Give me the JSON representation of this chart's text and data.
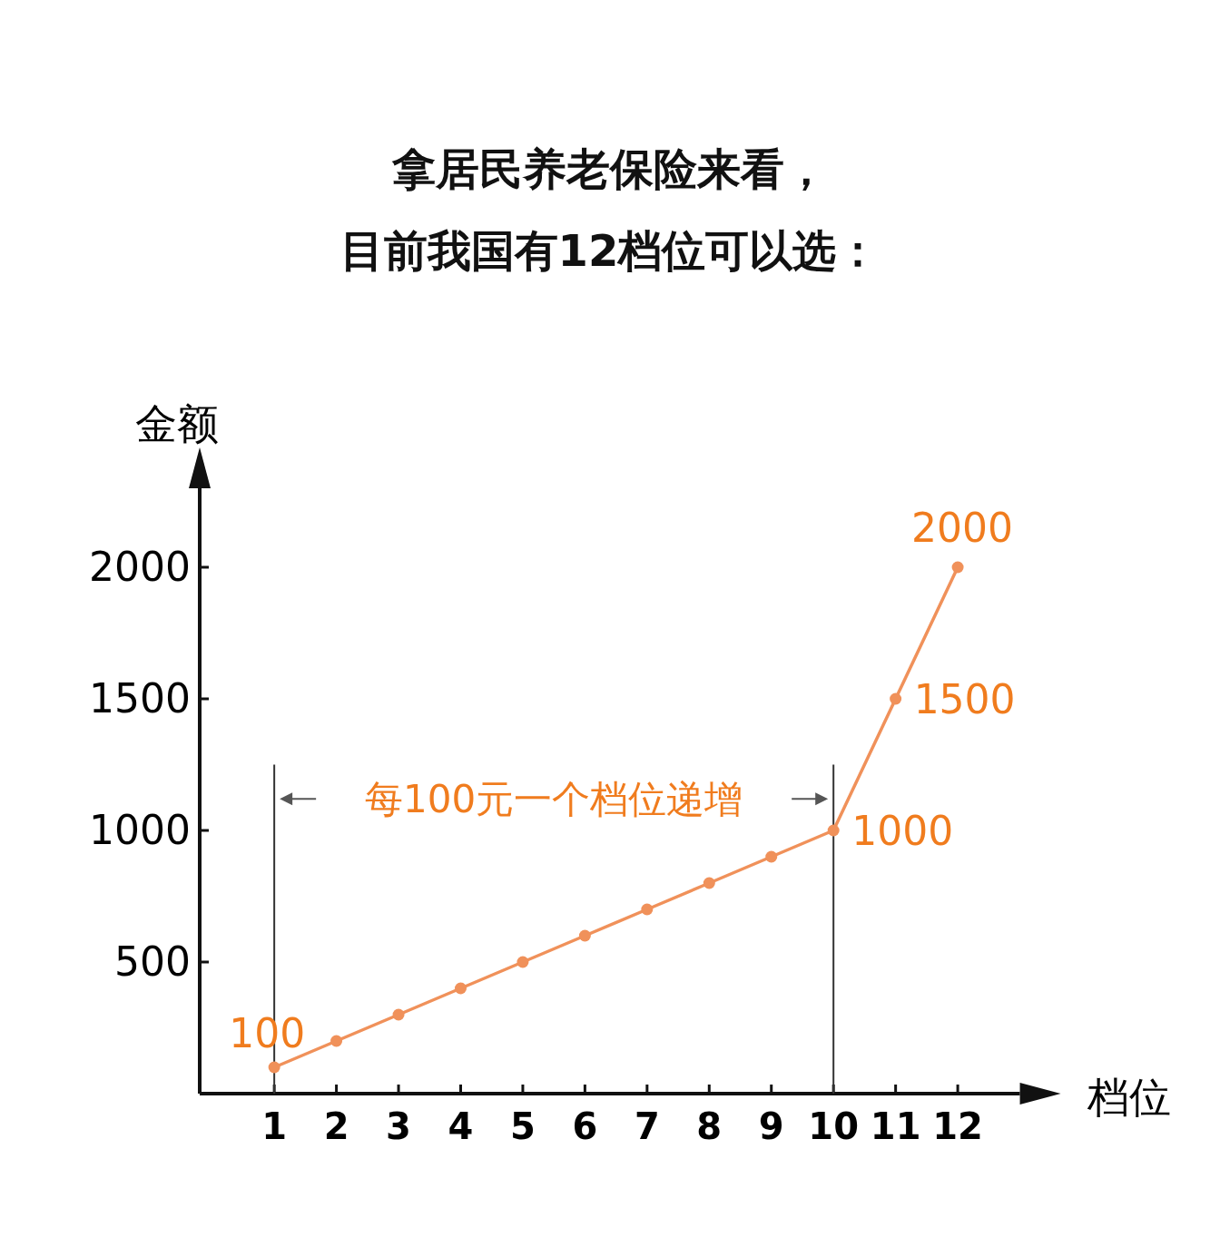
{
  "chart_data": {
    "type": "line",
    "title": "拿居民养老保险来看，",
    "subtitle": "目前我国有12档位可以选：",
    "xlabel": "档位",
    "ylabel": "金额",
    "x": [
      1,
      2,
      3,
      4,
      5,
      6,
      7,
      8,
      9,
      10,
      11,
      12
    ],
    "series": [
      {
        "color": "#f0915a",
        "values": [
          100,
          200,
          300,
          400,
          500,
          600,
          700,
          800,
          900,
          1000,
          1500,
          2000
        ],
        "value_labels": [
          "100",
          null,
          null,
          null,
          null,
          null,
          null,
          null,
          null,
          "1000",
          "1500",
          "2000"
        ]
      }
    ],
    "xlim": [
      -0.2,
      13
    ],
    "xticks": [
      1,
      2,
      3,
      4,
      5,
      6,
      7,
      8,
      9,
      10,
      11,
      12
    ],
    "ylim": [
      0,
      2300
    ],
    "yticks": [
      500,
      1000,
      1500,
      2000
    ],
    "marker": "circle",
    "line_style": "solid",
    "ref_lines": [
      {
        "axis": "x",
        "value": 1,
        "color": "#333333",
        "line_style": "solid"
      },
      {
        "axis": "x",
        "value": 10,
        "color": "#333333",
        "line_style": "solid"
      }
    ],
    "annotations": [
      "每100元一个档位递增"
    ]
  }
}
